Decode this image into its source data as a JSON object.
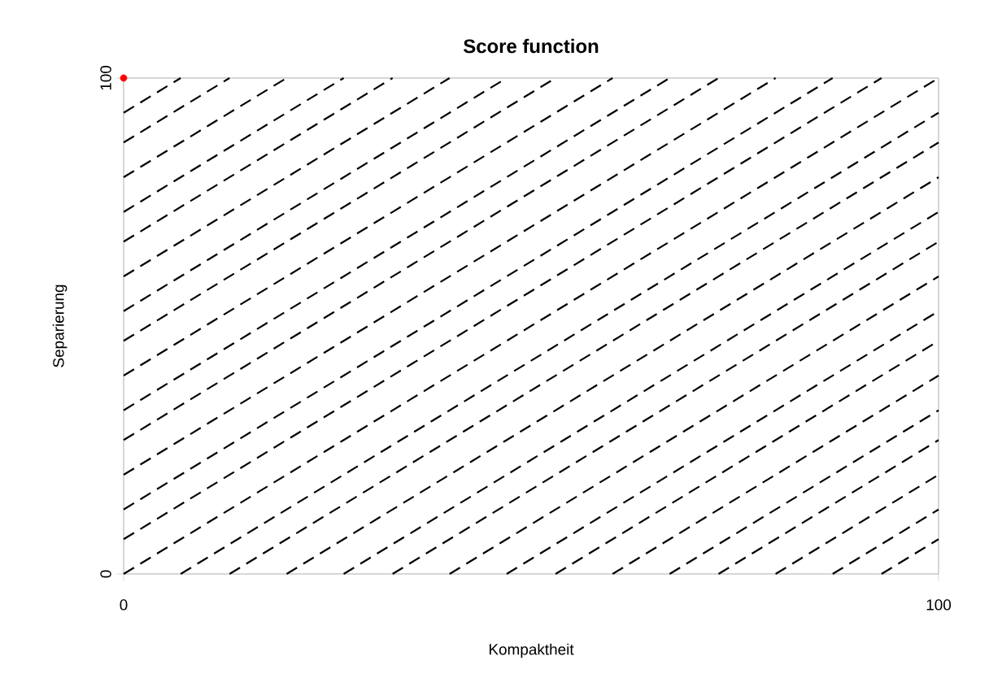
{
  "chart_data": {
    "type": "line",
    "title": "Score function",
    "xlabel": "Kompaktheit",
    "ylabel": "Separierung",
    "xlim": [
      0,
      100
    ],
    "ylim": [
      0,
      100
    ],
    "xticks": [
      0,
      100
    ],
    "yticks": [
      0,
      100
    ],
    "line_style": "dashed",
    "color": "#000000",
    "series": [
      {
        "x": [
          0,
          7
        ],
        "values": [
          93,
          100
        ]
      },
      {
        "x": [
          0,
          13
        ],
        "values": [
          87,
          100
        ]
      },
      {
        "x": [
          0,
          20
        ],
        "values": [
          80,
          100
        ]
      },
      {
        "x": [
          0,
          27
        ],
        "values": [
          73,
          100
        ]
      },
      {
        "x": [
          0,
          33
        ],
        "values": [
          67,
          100
        ]
      },
      {
        "x": [
          0,
          40
        ],
        "values": [
          60,
          100
        ]
      },
      {
        "x": [
          0,
          47
        ],
        "values": [
          53,
          100
        ]
      },
      {
        "x": [
          0,
          53
        ],
        "values": [
          47,
          100
        ]
      },
      {
        "x": [
          0,
          60
        ],
        "values": [
          40,
          100
        ]
      },
      {
        "x": [
          0,
          67
        ],
        "values": [
          33,
          100
        ]
      },
      {
        "x": [
          0,
          73
        ],
        "values": [
          27,
          100
        ]
      },
      {
        "x": [
          0,
          80
        ],
        "values": [
          20,
          100
        ]
      },
      {
        "x": [
          0,
          87
        ],
        "values": [
          13,
          100
        ]
      },
      {
        "x": [
          0,
          93
        ],
        "values": [
          7,
          100
        ]
      },
      {
        "x": [
          0,
          100
        ],
        "values": [
          0,
          100
        ]
      },
      {
        "x": [
          7,
          100
        ],
        "values": [
          0,
          93
        ]
      },
      {
        "x": [
          13,
          100
        ],
        "values": [
          0,
          87
        ]
      },
      {
        "x": [
          20,
          100
        ],
        "values": [
          0,
          80
        ]
      },
      {
        "x": [
          27,
          100
        ],
        "values": [
          0,
          73
        ]
      },
      {
        "x": [
          33,
          100
        ],
        "values": [
          0,
          67
        ]
      },
      {
        "x": [
          40,
          100
        ],
        "values": [
          0,
          60
        ]
      },
      {
        "x": [
          47,
          100
        ],
        "values": [
          0,
          53
        ]
      },
      {
        "x": [
          53,
          100
        ],
        "values": [
          0,
          47
        ]
      },
      {
        "x": [
          60,
          100
        ],
        "values": [
          0,
          40
        ]
      },
      {
        "x": [
          67,
          100
        ],
        "values": [
          0,
          33
        ]
      },
      {
        "x": [
          73,
          100
        ],
        "values": [
          0,
          27
        ]
      },
      {
        "x": [
          80,
          100
        ],
        "values": [
          0,
          20
        ]
      },
      {
        "x": [
          87,
          100
        ],
        "values": [
          0,
          13
        ]
      },
      {
        "x": [
          93,
          100
        ],
        "values": [
          0,
          7
        ]
      },
      {
        "type": "scatter",
        "x": [
          0
        ],
        "values": [
          100
        ],
        "color": "#ff0000"
      }
    ]
  }
}
